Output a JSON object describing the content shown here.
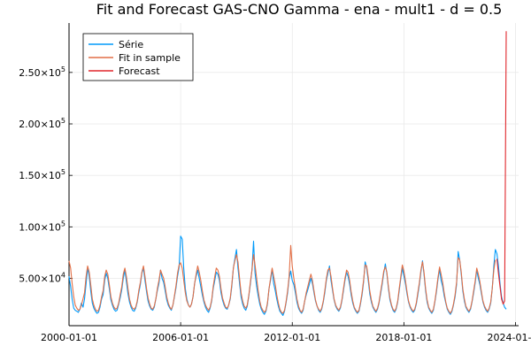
{
  "chart_data": {
    "type": "line",
    "title": "Fit and Forecast GAS-CNO Gamma - ena - mult1 - d = 0.5",
    "xlabel": "",
    "ylabel": "",
    "x_ticks": [
      "2000-01-01",
      "2006-01-01",
      "2012-01-01",
      "2018-01-01",
      "2024-01-01"
    ],
    "y_ticks": [
      {
        "value": 50000,
        "mantissa": "5.00",
        "exp": "4"
      },
      {
        "value": 100000,
        "mantissa": "1.00",
        "exp": "5"
      },
      {
        "value": 150000,
        "mantissa": "1.50",
        "exp": "5"
      },
      {
        "value": 200000,
        "mantissa": "2.00",
        "exp": "5"
      },
      {
        "value": 250000,
        "mantissa": "2.50",
        "exp": "5"
      }
    ],
    "tick_suffix": "×10",
    "xlim": [
      "2000-01-01",
      "2024-03-01"
    ],
    "ylim": [
      4000,
      298000
    ],
    "grid": true,
    "legend_position": "top-left",
    "series": [
      {
        "name": "Série",
        "color": "#009AFA",
        "x_start": "2000-01",
        "step": "month",
        "values": [
          52000,
          42000,
          30000,
          21000,
          19000,
          18000,
          17000,
          20000,
          26000,
          22000,
          30000,
          45000,
          60000,
          52000,
          38000,
          26000,
          21000,
          18000,
          16000,
          17000,
          22000,
          30000,
          34000,
          48000,
          55000,
          50000,
          40000,
          29000,
          24000,
          20000,
          18000,
          19000,
          25000,
          31000,
          39000,
          50000,
          58000,
          47000,
          35000,
          27000,
          22000,
          19000,
          18000,
          21000,
          27000,
          36000,
          44000,
          55000,
          60000,
          48000,
          37000,
          28000,
          23000,
          20000,
          19000,
          22000,
          30000,
          38000,
          45000,
          58000,
          50000,
          46000,
          38000,
          29000,
          24000,
          21000,
          19000,
          24000,
          32000,
          41000,
          52000,
          61000,
          91000,
          88000,
          60000,
          40000,
          30000,
          24000,
          22000,
          25000,
          32000,
          45000,
          52000,
          58000,
          50000,
          42000,
          34000,
          27000,
          22000,
          19000,
          17000,
          21000,
          28000,
          40000,
          48000,
          56000,
          54000,
          48000,
          36000,
          29000,
          24000,
          21000,
          20000,
          24000,
          30000,
          42000,
          60000,
          69000,
          78000,
          60000,
          45000,
          32000,
          25000,
          21000,
          19000,
          23000,
          33000,
          45000,
          58000,
          86000,
          55000,
          42000,
          33000,
          25000,
          20000,
          17000,
          15000,
          18000,
          25000,
          40000,
          48000,
          59000,
          45000,
          38000,
          30000,
          23000,
          18000,
          16000,
          14000,
          18000,
          26000,
          36000,
          50000,
          57000,
          48000,
          44000,
          36000,
          27000,
          21000,
          18000,
          16000,
          19000,
          28000,
          34000,
          39000,
          44000,
          50000,
          45000,
          36000,
          28000,
          23000,
          19000,
          17000,
          20000,
          27000,
          36000,
          48000,
          55000,
          62000,
          48000,
          38000,
          29000,
          23000,
          20000,
          18000,
          21000,
          28000,
          38000,
          48000,
          56000,
          52000,
          44000,
          34000,
          26000,
          21000,
          18000,
          16000,
          18000,
          25000,
          34000,
          46000,
          66000,
          60000,
          48000,
          35000,
          27000,
          22000,
          19000,
          17000,
          20000,
          26000,
          35000,
          44000,
          55000,
          64000,
          55000,
          40000,
          29000,
          23000,
          19000,
          17000,
          20000,
          27000,
          38000,
          50000,
          60000,
          52000,
          45000,
          35000,
          27000,
          22000,
          19000,
          17000,
          19000,
          25000,
          34000,
          44000,
          56000,
          67000,
          54000,
          38000,
          27000,
          21000,
          18000,
          16000,
          19000,
          27000,
          37000,
          49000,
          59000,
          48000,
          42000,
          33000,
          26000,
          20000,
          17000,
          15000,
          18000,
          24000,
          32000,
          44000,
          76000,
          68000,
          54000,
          38000,
          28000,
          22000,
          19000,
          17000,
          20000,
          27000,
          36000,
          46000,
          58000,
          50000,
          44000,
          35000,
          27000,
          22000,
          19000,
          17000,
          20000,
          26000,
          40000,
          62000,
          78000,
          74000,
          62000,
          45000,
          32000,
          26000,
          22000,
          20000
        ]
      },
      {
        "name": "Fit in sample",
        "color": "#E26F46",
        "x_start": "2000-01",
        "step": "month",
        "values": [
          67000,
          60000,
          45000,
          32000,
          24000,
          21000,
          19000,
          20000,
          24000,
          30000,
          36000,
          52000,
          62000,
          56000,
          44000,
          30000,
          24000,
          20000,
          18000,
          19000,
          24000,
          32000,
          38000,
          52000,
          58000,
          54000,
          44000,
          32000,
          26000,
          22000,
          20000,
          21000,
          26000,
          34000,
          42000,
          54000,
          60000,
          52000,
          40000,
          30000,
          24000,
          21000,
          20000,
          22000,
          28000,
          38000,
          46000,
          56000,
          62000,
          52000,
          40000,
          31000,
          25000,
          21000,
          20000,
          23000,
          30000,
          40000,
          48000,
          58000,
          54000,
          50000,
          42000,
          32000,
          26000,
          22000,
          20000,
          24000,
          33000,
          43000,
          55000,
          63000,
          65000,
          60000,
          48000,
          36000,
          28000,
          24000,
          22000,
          25000,
          32000,
          45000,
          54000,
          62000,
          56000,
          48000,
          38000,
          29000,
          24000,
          21000,
          19000,
          22000,
          29000,
          42000,
          52000,
          60000,
          58000,
          52000,
          40000,
          31000,
          26000,
          22000,
          21000,
          24000,
          31000,
          44000,
          60000,
          67000,
          73000,
          66000,
          50000,
          36000,
          28000,
          23000,
          21000,
          24000,
          34000,
          47000,
          58000,
          73000,
          63000,
          50000,
          38000,
          28000,
          22000,
          19000,
          17000,
          19000,
          26000,
          40000,
          50000,
          60000,
          52000,
          44000,
          34000,
          26000,
          20000,
          17000,
          16000,
          19000,
          27000,
          38000,
          52000,
          82000,
          62000,
          50000,
          40000,
          30000,
          23000,
          19000,
          17000,
          20000,
          28000,
          36000,
          42000,
          48000,
          54000,
          48000,
          38000,
          29000,
          23000,
          20000,
          18000,
          21000,
          28000,
          38000,
          50000,
          58000,
          60000,
          52000,
          40000,
          30000,
          24000,
          21000,
          19000,
          22000,
          29000,
          40000,
          50000,
          58000,
          56000,
          48000,
          37000,
          28000,
          22000,
          19000,
          17000,
          19000,
          26000,
          36000,
          48000,
          63000,
          62000,
          51000,
          38000,
          29000,
          23000,
          20000,
          18000,
          21000,
          27000,
          37000,
          46000,
          57000,
          61000,
          56000,
          42000,
          31000,
          24000,
          20000,
          18000,
          21000,
          28000,
          40000,
          52000,
          63000,
          57000,
          48000,
          37000,
          28000,
          23000,
          20000,
          18000,
          20000,
          26000,
          36000,
          46000,
          58000,
          66000,
          56000,
          40000,
          29000,
          22000,
          19000,
          17000,
          20000,
          28000,
          39000,
          51000,
          61000,
          54000,
          46000,
          36000,
          27000,
          21000,
          18000,
          16000,
          19000,
          25000,
          34000,
          46000,
          70000,
          68000,
          56000,
          40000,
          30000,
          23000,
          20000,
          18000,
          21000,
          28000,
          38000,
          48000,
          60000,
          54000,
          47000,
          37000,
          28000,
          23000,
          20000,
          18000,
          21000,
          27000,
          40000,
          58000,
          68000
        ]
      },
      {
        "name": "Forecast",
        "color": "#E0262B",
        "x_start": "2023-01",
        "step": "month",
        "values": [
          69000,
          55000,
          42000,
          30000,
          25000,
          28000,
          290000
        ]
      }
    ]
  }
}
